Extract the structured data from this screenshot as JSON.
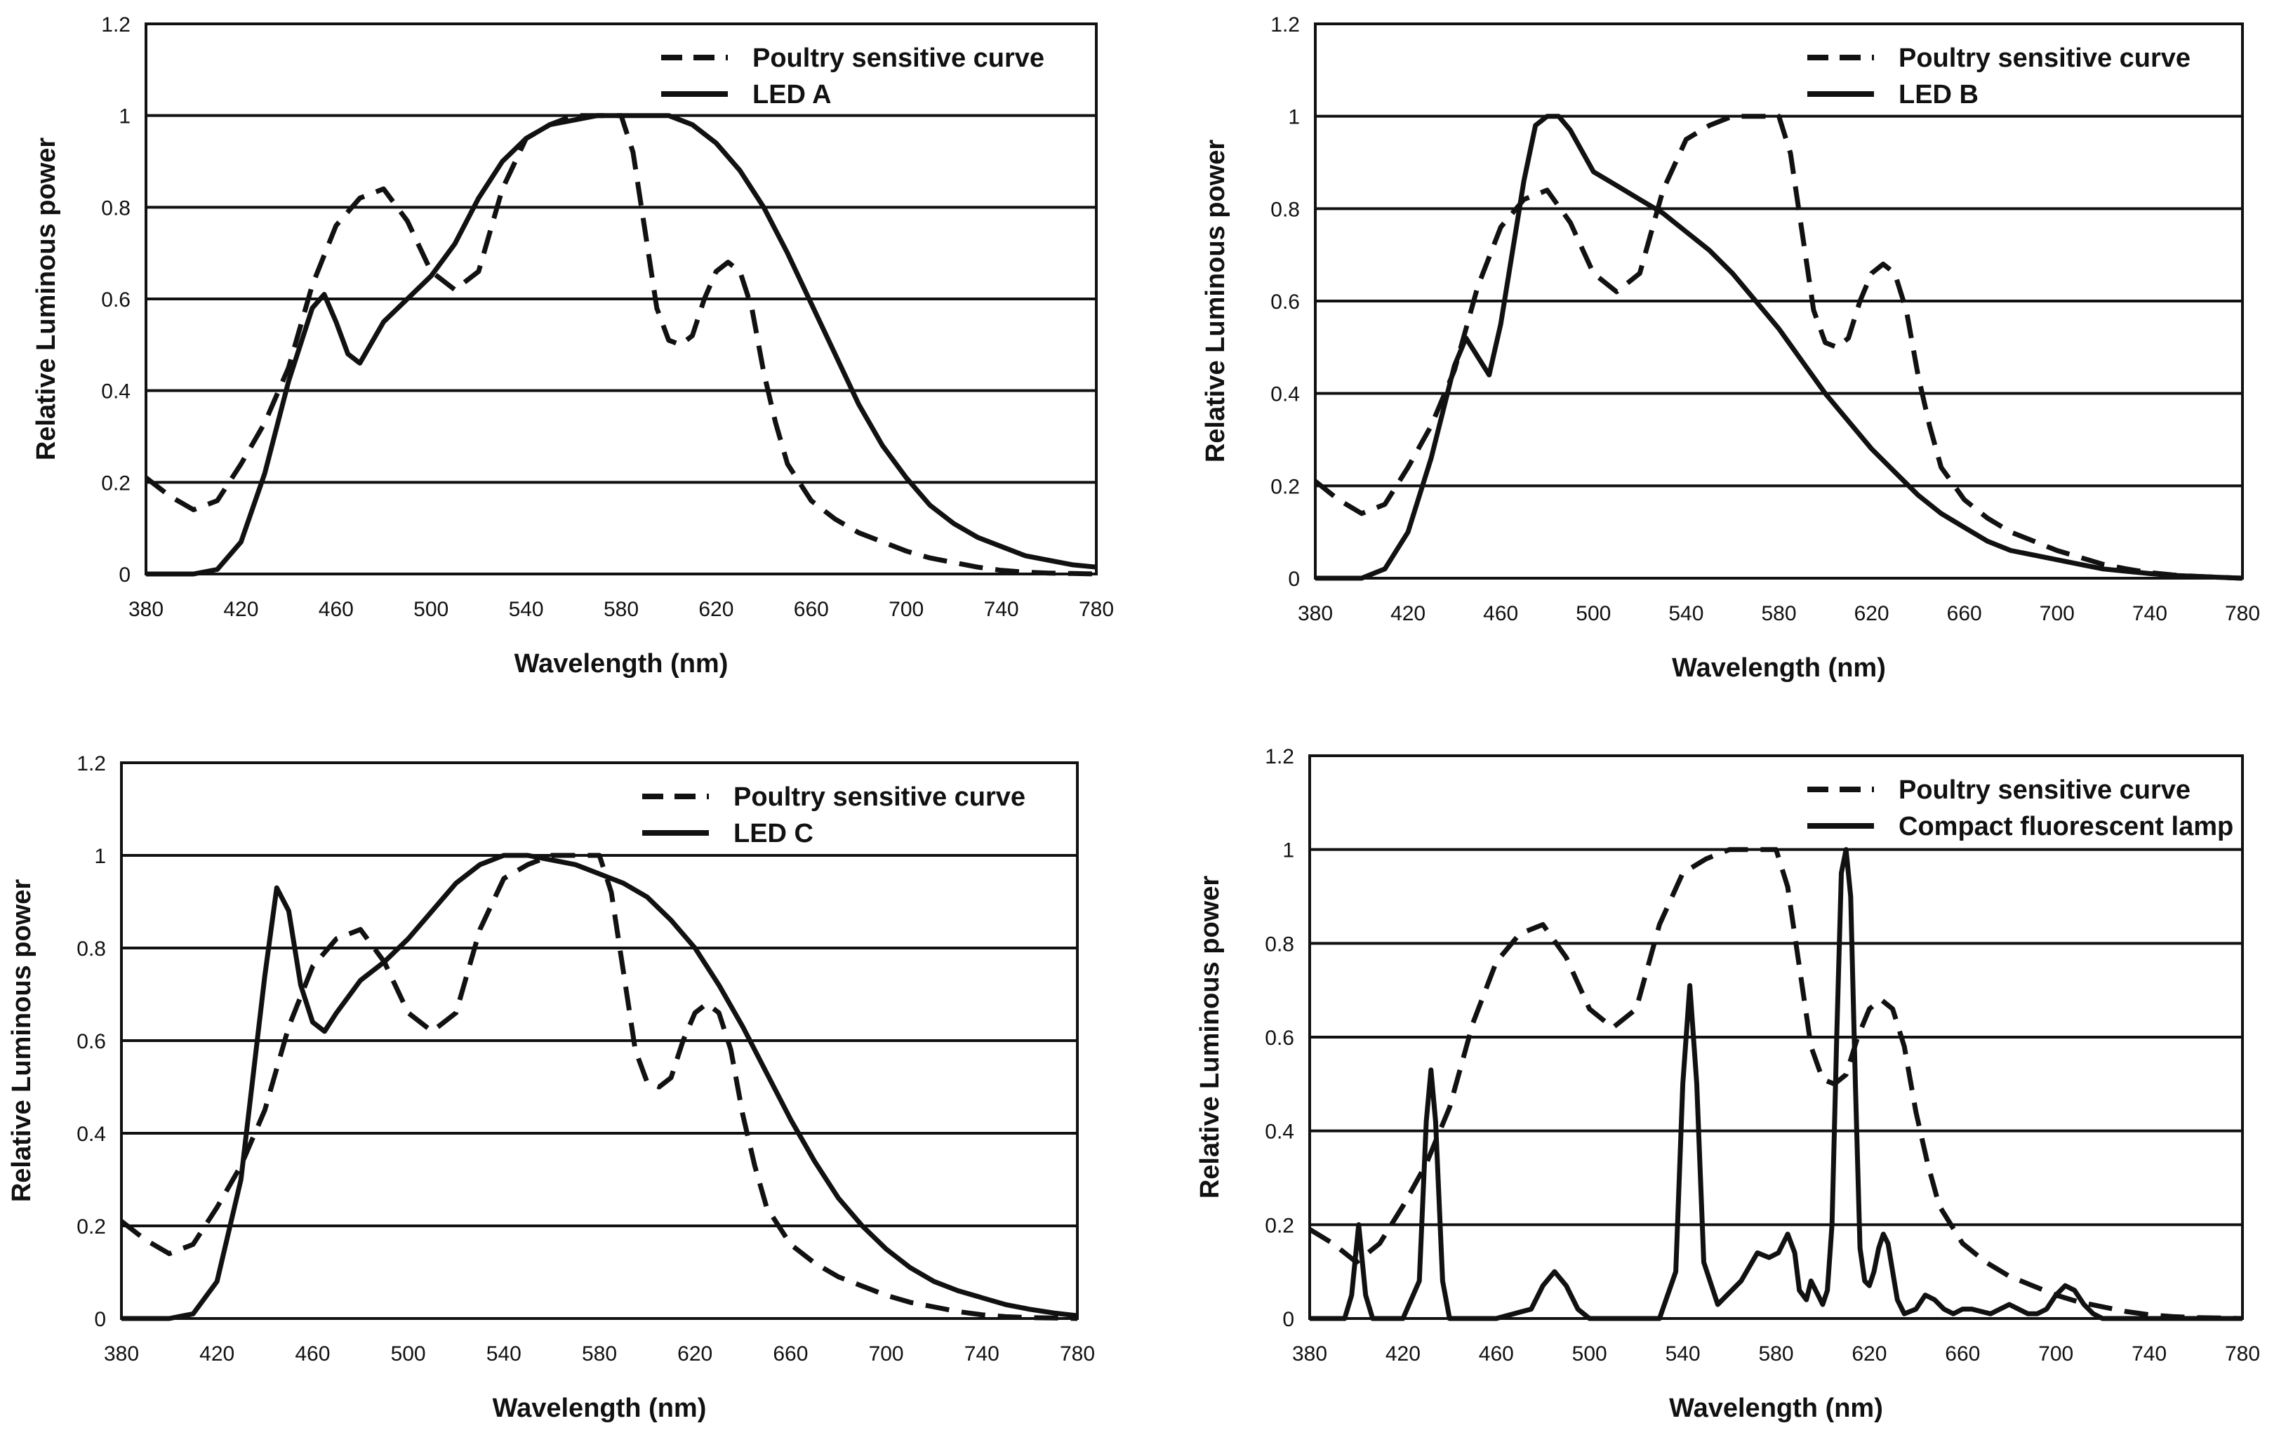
{
  "figure": {
    "panel_count": 4
  },
  "chart_data": [
    {
      "type": "line",
      "xlabel": "Wavelength (nm)",
      "ylabel": "Relative Luminous power",
      "xlim": [
        380,
        780
      ],
      "ylim": [
        0,
        1.2
      ],
      "xticks": [
        380,
        420,
        460,
        500,
        540,
        580,
        620,
        660,
        700,
        740,
        780
      ],
      "yticks": [
        0,
        0.2,
        0.4,
        0.6,
        0.8,
        1,
        1.2
      ],
      "grid": "horizontal",
      "legend_position": "top-right",
      "series": [
        {
          "name": "Poultry sensitive curve",
          "style": "dashed",
          "x": [
            380,
            390,
            400,
            410,
            420,
            430,
            440,
            450,
            460,
            470,
            480,
            490,
            500,
            510,
            520,
            530,
            540,
            550,
            560,
            570,
            580,
            585,
            590,
            595,
            600,
            605,
            610,
            615,
            620,
            625,
            630,
            635,
            640,
            645,
            650,
            660,
            670,
            680,
            690,
            700,
            710,
            720,
            730,
            740,
            750,
            760,
            770,
            780
          ],
          "y": [
            0.21,
            0.17,
            0.14,
            0.16,
            0.24,
            0.33,
            0.45,
            0.63,
            0.76,
            0.82,
            0.84,
            0.77,
            0.66,
            0.62,
            0.66,
            0.84,
            0.95,
            0.98,
            1.0,
            1.0,
            1.0,
            0.92,
            0.75,
            0.58,
            0.51,
            0.5,
            0.52,
            0.6,
            0.66,
            0.68,
            0.66,
            0.58,
            0.44,
            0.33,
            0.24,
            0.16,
            0.12,
            0.09,
            0.07,
            0.05,
            0.035,
            0.025,
            0.015,
            0.008,
            0.004,
            0.002,
            0.001,
            0.0
          ]
        },
        {
          "name": "LED A",
          "style": "solid",
          "x": [
            380,
            400,
            410,
            420,
            430,
            440,
            450,
            455,
            460,
            465,
            470,
            480,
            490,
            500,
            510,
            520,
            530,
            540,
            550,
            560,
            570,
            580,
            590,
            600,
            610,
            620,
            630,
            640,
            650,
            660,
            670,
            680,
            690,
            700,
            710,
            720,
            730,
            740,
            750,
            760,
            770,
            780
          ],
          "y": [
            0.0,
            0.0,
            0.01,
            0.07,
            0.22,
            0.42,
            0.58,
            0.61,
            0.55,
            0.48,
            0.46,
            0.55,
            0.6,
            0.65,
            0.72,
            0.82,
            0.9,
            0.95,
            0.98,
            0.99,
            1.0,
            1.0,
            1.0,
            1.0,
            0.98,
            0.94,
            0.88,
            0.8,
            0.7,
            0.59,
            0.48,
            0.37,
            0.28,
            0.21,
            0.15,
            0.11,
            0.08,
            0.06,
            0.04,
            0.03,
            0.02,
            0.015
          ]
        }
      ]
    },
    {
      "type": "line",
      "xlabel": "Wavelength (nm)",
      "ylabel": "Relative Luminous power",
      "xlim": [
        380,
        780
      ],
      "ylim": [
        0,
        1.2
      ],
      "xticks": [
        380,
        420,
        460,
        500,
        540,
        580,
        620,
        660,
        700,
        740,
        780
      ],
      "yticks": [
        0,
        0.2,
        0.4,
        0.6,
        0.8,
        1,
        1.2
      ],
      "grid": "horizontal",
      "legend_position": "top-right",
      "series": [
        {
          "name": "Poultry sensitive curve",
          "style": "dashed",
          "x": [
            380,
            390,
            400,
            410,
            420,
            430,
            440,
            450,
            460,
            470,
            480,
            490,
            500,
            510,
            520,
            530,
            540,
            550,
            560,
            570,
            580,
            585,
            590,
            595,
            600,
            605,
            610,
            615,
            620,
            625,
            630,
            635,
            640,
            645,
            650,
            660,
            670,
            680,
            690,
            700,
            710,
            720,
            730,
            740,
            750,
            760,
            770,
            780
          ],
          "y": [
            0.21,
            0.17,
            0.14,
            0.16,
            0.24,
            0.33,
            0.45,
            0.63,
            0.76,
            0.82,
            0.84,
            0.77,
            0.66,
            0.62,
            0.66,
            0.84,
            0.95,
            0.98,
            1.0,
            1.0,
            1.0,
            0.92,
            0.75,
            0.58,
            0.51,
            0.5,
            0.52,
            0.6,
            0.66,
            0.68,
            0.66,
            0.58,
            0.44,
            0.33,
            0.24,
            0.17,
            0.13,
            0.1,
            0.08,
            0.06,
            0.045,
            0.03,
            0.02,
            0.012,
            0.007,
            0.004,
            0.002,
            0.0
          ]
        },
        {
          "name": "LED B",
          "style": "solid",
          "x": [
            380,
            400,
            410,
            420,
            430,
            440,
            445,
            450,
            455,
            460,
            470,
            475,
            480,
            485,
            490,
            500,
            510,
            520,
            530,
            540,
            550,
            560,
            570,
            580,
            590,
            600,
            610,
            620,
            630,
            640,
            650,
            660,
            670,
            680,
            690,
            700,
            710,
            720,
            730,
            740,
            750,
            760,
            770,
            780
          ],
          "y": [
            0.0,
            0.0,
            0.02,
            0.1,
            0.26,
            0.46,
            0.52,
            0.48,
            0.44,
            0.55,
            0.86,
            0.98,
            1.0,
            1.0,
            0.97,
            0.88,
            0.85,
            0.82,
            0.79,
            0.75,
            0.71,
            0.66,
            0.6,
            0.54,
            0.47,
            0.4,
            0.34,
            0.28,
            0.23,
            0.18,
            0.14,
            0.11,
            0.08,
            0.06,
            0.05,
            0.04,
            0.03,
            0.02,
            0.015,
            0.01,
            0.006,
            0.004,
            0.002,
            0.0
          ]
        }
      ]
    },
    {
      "type": "line",
      "xlabel": "Wavelength (nm)",
      "ylabel": "Relative Luminous power",
      "xlim": [
        380,
        780
      ],
      "ylim": [
        0,
        1.2
      ],
      "xticks": [
        380,
        420,
        460,
        500,
        540,
        580,
        620,
        660,
        700,
        740,
        780
      ],
      "yticks": [
        0,
        0.2,
        0.4,
        0.6,
        0.8,
        1,
        1.2
      ],
      "grid": "horizontal",
      "legend_position": "top-right",
      "series": [
        {
          "name": "Poultry sensitive curve",
          "style": "dashed",
          "x": [
            380,
            390,
            400,
            410,
            420,
            430,
            440,
            450,
            460,
            470,
            480,
            490,
            500,
            510,
            520,
            530,
            540,
            550,
            560,
            570,
            580,
            585,
            590,
            595,
            600,
            605,
            610,
            615,
            620,
            625,
            630,
            635,
            640,
            645,
            650,
            660,
            670,
            680,
            690,
            700,
            710,
            720,
            730,
            740,
            750,
            760,
            770,
            780
          ],
          "y": [
            0.21,
            0.17,
            0.14,
            0.16,
            0.24,
            0.33,
            0.45,
            0.63,
            0.76,
            0.82,
            0.84,
            0.77,
            0.66,
            0.62,
            0.66,
            0.84,
            0.95,
            0.98,
            1.0,
            1.0,
            1.0,
            0.92,
            0.75,
            0.58,
            0.51,
            0.5,
            0.52,
            0.6,
            0.66,
            0.68,
            0.66,
            0.58,
            0.44,
            0.33,
            0.24,
            0.16,
            0.12,
            0.09,
            0.07,
            0.05,
            0.035,
            0.025,
            0.015,
            0.008,
            0.004,
            0.002,
            0.001,
            0.0
          ]
        },
        {
          "name": "LED C",
          "style": "solid",
          "x": [
            380,
            400,
            410,
            420,
            430,
            440,
            445,
            450,
            455,
            460,
            465,
            470,
            480,
            490,
            500,
            510,
            520,
            530,
            540,
            550,
            560,
            570,
            580,
            590,
            600,
            610,
            620,
            630,
            640,
            650,
            660,
            670,
            680,
            690,
            700,
            710,
            720,
            730,
            740,
            750,
            760,
            770,
            780
          ],
          "y": [
            0.0,
            0.0,
            0.01,
            0.08,
            0.3,
            0.74,
            0.93,
            0.88,
            0.72,
            0.64,
            0.62,
            0.66,
            0.73,
            0.77,
            0.82,
            0.88,
            0.94,
            0.98,
            1.0,
            1.0,
            0.99,
            0.98,
            0.96,
            0.94,
            0.91,
            0.86,
            0.8,
            0.72,
            0.63,
            0.53,
            0.43,
            0.34,
            0.26,
            0.2,
            0.15,
            0.11,
            0.08,
            0.06,
            0.045,
            0.03,
            0.02,
            0.012,
            0.006
          ]
        }
      ]
    },
    {
      "type": "line",
      "xlabel": "Wavelength (nm)",
      "ylabel": "Relative Luminous power",
      "xlim": [
        380,
        780
      ],
      "ylim": [
        0,
        1.2
      ],
      "xticks": [
        380,
        420,
        460,
        500,
        540,
        580,
        620,
        660,
        700,
        740,
        780
      ],
      "yticks": [
        0,
        0.2,
        0.4,
        0.6,
        0.8,
        1,
        1.2
      ],
      "ytick_labels": [
        "0",
        "0.2",
        "0.4",
        "0.6",
        "0.8",
        "1",
        "1.2"
      ],
      "grid": "horizontal",
      "legend_position": "top-right",
      "series": [
        {
          "name": "Poultry sensitive curve",
          "style": "dashed",
          "x": [
            380,
            390,
            400,
            410,
            420,
            430,
            440,
            450,
            460,
            470,
            480,
            490,
            500,
            510,
            520,
            530,
            540,
            550,
            560,
            570,
            580,
            585,
            590,
            595,
            600,
            605,
            610,
            615,
            620,
            625,
            630,
            635,
            640,
            645,
            650,
            660,
            670,
            680,
            690,
            700,
            710,
            720,
            730,
            740,
            750,
            760,
            770,
            780
          ],
          "y": [
            0.19,
            0.16,
            0.12,
            0.16,
            0.24,
            0.33,
            0.45,
            0.63,
            0.76,
            0.82,
            0.84,
            0.77,
            0.66,
            0.62,
            0.66,
            0.84,
            0.95,
            0.98,
            1.0,
            1.0,
            1.0,
            0.92,
            0.75,
            0.58,
            0.51,
            0.5,
            0.52,
            0.6,
            0.66,
            0.68,
            0.66,
            0.58,
            0.44,
            0.33,
            0.24,
            0.16,
            0.12,
            0.09,
            0.07,
            0.05,
            0.035,
            0.025,
            0.015,
            0.008,
            0.004,
            0.002,
            0.001,
            0.0
          ]
        },
        {
          "name": "Compact fluorescent lamp",
          "style": "solid",
          "x": [
            380,
            395,
            398,
            401,
            404,
            407,
            420,
            427,
            430,
            432,
            434,
            437,
            440,
            460,
            475,
            480,
            485,
            490,
            495,
            500,
            530,
            537,
            540,
            543,
            546,
            549,
            555,
            565,
            572,
            577,
            581,
            585,
            588,
            590,
            593,
            595,
            598,
            600,
            602,
            604,
            606,
            608,
            610,
            612,
            614,
            616,
            618,
            620,
            622,
            624,
            626,
            628,
            630,
            632,
            635,
            640,
            644,
            648,
            652,
            656,
            660,
            664,
            668,
            672,
            676,
            680,
            684,
            688,
            692,
            696,
            700,
            704,
            708,
            712,
            716,
            720,
            730,
            740,
            780
          ],
          "y": [
            0.0,
            0.0,
            0.05,
            0.2,
            0.05,
            0.0,
            0.0,
            0.08,
            0.42,
            0.53,
            0.42,
            0.08,
            0.0,
            0.0,
            0.02,
            0.07,
            0.1,
            0.07,
            0.02,
            0.0,
            0.0,
            0.1,
            0.5,
            0.71,
            0.5,
            0.12,
            0.03,
            0.08,
            0.14,
            0.13,
            0.14,
            0.18,
            0.14,
            0.06,
            0.04,
            0.08,
            0.05,
            0.03,
            0.06,
            0.2,
            0.6,
            0.95,
            1.0,
            0.9,
            0.5,
            0.15,
            0.08,
            0.07,
            0.1,
            0.15,
            0.18,
            0.16,
            0.1,
            0.04,
            0.01,
            0.02,
            0.05,
            0.04,
            0.02,
            0.01,
            0.02,
            0.02,
            0.015,
            0.01,
            0.02,
            0.03,
            0.02,
            0.01,
            0.01,
            0.02,
            0.05,
            0.07,
            0.06,
            0.03,
            0.01,
            0.0,
            0.0,
            0.0,
            0.0
          ]
        }
      ]
    }
  ]
}
